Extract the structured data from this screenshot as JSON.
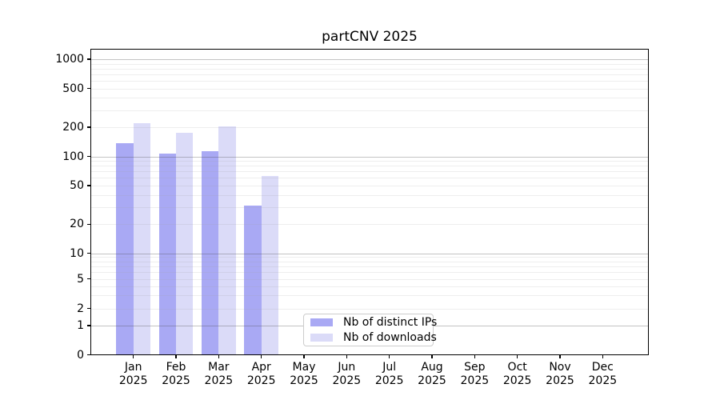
{
  "title": "partCNV 2025",
  "colors": {
    "distinct_ips_bar": "#a9a9f4",
    "downloads_bar": "#dbdbf8",
    "axis_text": "#000000",
    "legend_border": "#cccccc",
    "background": "#ffffff"
  },
  "chart_data": {
    "type": "bar",
    "title": "partCNV 2025",
    "y_scale": "symlog",
    "categories": [
      "Jan 2025",
      "Feb 2025",
      "Mar 2025",
      "Apr 2025",
      "May 2025",
      "Jun 2025",
      "Jul 2025",
      "Aug 2025",
      "Sep 2025",
      "Oct 2025",
      "Nov 2025",
      "Dec 2025"
    ],
    "series": [
      {
        "name": "Nb of distinct IPs",
        "color_key": "distinct_ips_bar",
        "values": [
          137,
          107,
          114,
          31,
          null,
          null,
          null,
          null,
          null,
          null,
          null,
          null
        ]
      },
      {
        "name": "Nb of downloads",
        "color_key": "downloads_bar",
        "values": [
          220,
          177,
          203,
          63,
          null,
          null,
          null,
          null,
          null,
          null,
          null,
          null
        ]
      }
    ],
    "y_ticks": [
      0,
      1,
      2,
      5,
      10,
      20,
      50,
      100,
      200,
      500,
      1000
    ],
    "ylim": [
      0,
      1250
    ],
    "xlabel": "",
    "ylabel": "",
    "grid": "horizontal major and minor gridlines",
    "legend_position": "inside lower-left-of-center"
  }
}
